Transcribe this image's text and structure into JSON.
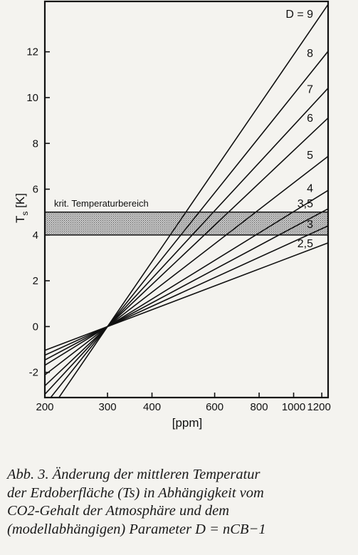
{
  "chart_data": {
    "type": "line",
    "xscale": "log",
    "xlim": [
      200,
      1250
    ],
    "ylim": [
      -3.1,
      14.2
    ],
    "xticks": [
      200,
      300,
      400,
      600,
      800,
      1000,
      1200
    ],
    "xtick_labels": [
      "200",
      "300",
      "400",
      "600",
      "800",
      "1000",
      "1200"
    ],
    "yticks": [
      -2,
      0,
      2,
      4,
      6,
      8,
      10,
      12
    ],
    "ytick_labels": [
      "-2",
      "0",
      "2",
      "4",
      "6",
      "8",
      "10",
      "12"
    ],
    "xlabel": "[ppm]",
    "ylabel": "T_s [K]",
    "band": {
      "label": "krit. Temperaturbereich",
      "ymin": 4.0,
      "ymax": 5.0
    },
    "series": [
      {
        "name": "D = 9",
        "pivot_x": 300,
        "slope_per_decade": 22.7
      },
      {
        "name": "8",
        "pivot_x": 300,
        "slope_per_decade": 19.4
      },
      {
        "name": "7",
        "pivot_x": 300,
        "slope_per_decade": 16.8
      },
      {
        "name": "6",
        "pivot_x": 300,
        "slope_per_decade": 14.7
      },
      {
        "name": "5",
        "pivot_x": 300,
        "slope_per_decade": 12.0
      },
      {
        "name": "4",
        "pivot_x": 300,
        "slope_per_decade": 9.6
      },
      {
        "name": "3,5",
        "pivot_x": 300,
        "slope_per_decade": 8.3
      },
      {
        "name": "3",
        "pivot_x": 300,
        "slope_per_decade": 7.1
      },
      {
        "name": "2,5",
        "pivot_x": 300,
        "slope_per_decade": 5.9
      }
    ],
    "grid": false
  },
  "caption": {
    "lines": [
      "Abb. 3. Änderung der mittleren Temperatur",
      "der Erdoberfläche (Ts) in Abhängigkeit vom",
      "CO2-Gehalt der Atmosphäre und dem",
      "(modellabhängigen) Parameter D = nCB−1"
    ]
  }
}
